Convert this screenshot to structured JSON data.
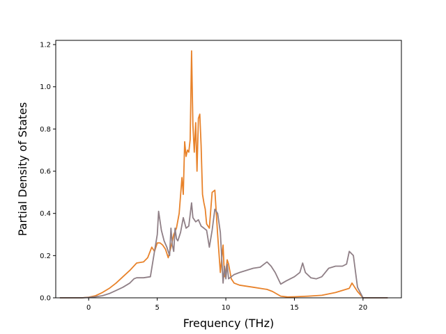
{
  "chart_data": {
    "type": "line",
    "title": "",
    "xlabel": "Frequency (THz)",
    "ylabel": "Partial Density of States",
    "xlim": [
      -2.4,
      22.8
    ],
    "ylim": [
      0,
      1.22
    ],
    "xticks": [
      0,
      5,
      10,
      15,
      20
    ],
    "yticks": [
      0.0,
      0.2,
      0.4,
      0.6,
      0.8,
      1.0,
      1.2
    ],
    "xtick_labels": [
      "0",
      "5",
      "10",
      "15",
      "20"
    ],
    "ytick_labels": [
      "0.0",
      "0.2",
      "0.4",
      "0.6",
      "0.8",
      "1.0",
      "1.2"
    ],
    "grid": false,
    "legend": "none",
    "series": [
      {
        "color": "#e8822a",
        "x": [
          -2.1,
          -0.5,
          0,
          0.5,
          1.0,
          1.5,
          2.0,
          2.5,
          3.0,
          3.5,
          4.0,
          4.3,
          4.6,
          4.8,
          5.0,
          5.2,
          5.4,
          5.6,
          5.8,
          6.0,
          6.2,
          6.4,
          6.6,
          6.8,
          6.9,
          7.0,
          7.1,
          7.2,
          7.3,
          7.4,
          7.5,
          7.6,
          7.7,
          7.8,
          7.9,
          8.0,
          8.1,
          8.2,
          8.3,
          8.4,
          8.5,
          8.6,
          8.8,
          9.0,
          9.2,
          9.4,
          9.6,
          9.8,
          9.9,
          10.0,
          10.1,
          10.2,
          10.4,
          10.6,
          11.0,
          12.0,
          13.0,
          13.4,
          14.0,
          14.5,
          15.0,
          16.0,
          17.0,
          18.0,
          19.0,
          19.2,
          19.6,
          20.0,
          21.8
        ],
        "y": [
          0,
          0,
          0.003,
          0.01,
          0.025,
          0.045,
          0.07,
          0.1,
          0.13,
          0.165,
          0.17,
          0.19,
          0.24,
          0.22,
          0.26,
          0.26,
          0.25,
          0.23,
          0.19,
          0.24,
          0.3,
          0.33,
          0.4,
          0.57,
          0.49,
          0.74,
          0.67,
          0.7,
          0.69,
          0.75,
          1.17,
          0.82,
          0.69,
          0.83,
          0.6,
          0.85,
          0.87,
          0.72,
          0.49,
          0.45,
          0.42,
          0.35,
          0.33,
          0.5,
          0.51,
          0.3,
          0.12,
          0.25,
          0.1,
          0.12,
          0.18,
          0.16,
          0.09,
          0.07,
          0.06,
          0.05,
          0.04,
          0.03,
          0.008,
          0.004,
          0.005,
          0.008,
          0.012,
          0.025,
          0.045,
          0.07,
          0.03,
          0.0,
          0
        ]
      },
      {
        "color": "#8f7f86",
        "x": [
          -2.1,
          -0.5,
          0,
          0.5,
          1.0,
          1.5,
          2.0,
          2.5,
          3.0,
          3.3,
          3.5,
          4.0,
          4.5,
          4.8,
          5.0,
          5.1,
          5.3,
          5.5,
          5.7,
          5.9,
          6.0,
          6.1,
          6.2,
          6.3,
          6.4,
          6.5,
          6.7,
          6.9,
          7.1,
          7.3,
          7.5,
          7.6,
          7.8,
          8.0,
          8.2,
          8.4,
          8.6,
          8.8,
          9.0,
          9.2,
          9.4,
          9.6,
          9.8,
          9.9,
          10.0,
          10.1,
          10.2,
          10.4,
          10.6,
          11.0,
          12.0,
          12.5,
          13.0,
          13.3,
          13.6,
          14.0,
          14.4,
          15.0,
          15.4,
          15.6,
          15.8,
          16.2,
          16.6,
          17.0,
          17.5,
          18.0,
          18.5,
          18.8,
          19.0,
          19.3,
          19.6,
          20.0,
          21.8
        ],
        "y": [
          0,
          0,
          0.002,
          0.005,
          0.01,
          0.02,
          0.035,
          0.05,
          0.07,
          0.09,
          0.095,
          0.095,
          0.1,
          0.22,
          0.3,
          0.41,
          0.32,
          0.27,
          0.24,
          0.2,
          0.33,
          0.25,
          0.22,
          0.33,
          0.28,
          0.27,
          0.31,
          0.38,
          0.33,
          0.34,
          0.45,
          0.38,
          0.36,
          0.37,
          0.34,
          0.33,
          0.32,
          0.24,
          0.32,
          0.42,
          0.4,
          0.31,
          0.07,
          0.15,
          0.09,
          0.16,
          0.09,
          0.1,
          0.11,
          0.12,
          0.14,
          0.145,
          0.17,
          0.15,
          0.12,
          0.065,
          0.08,
          0.1,
          0.12,
          0.165,
          0.12,
          0.095,
          0.09,
          0.1,
          0.14,
          0.15,
          0.15,
          0.16,
          0.22,
          0.2,
          0.05,
          0.0,
          0
        ]
      }
    ]
  }
}
